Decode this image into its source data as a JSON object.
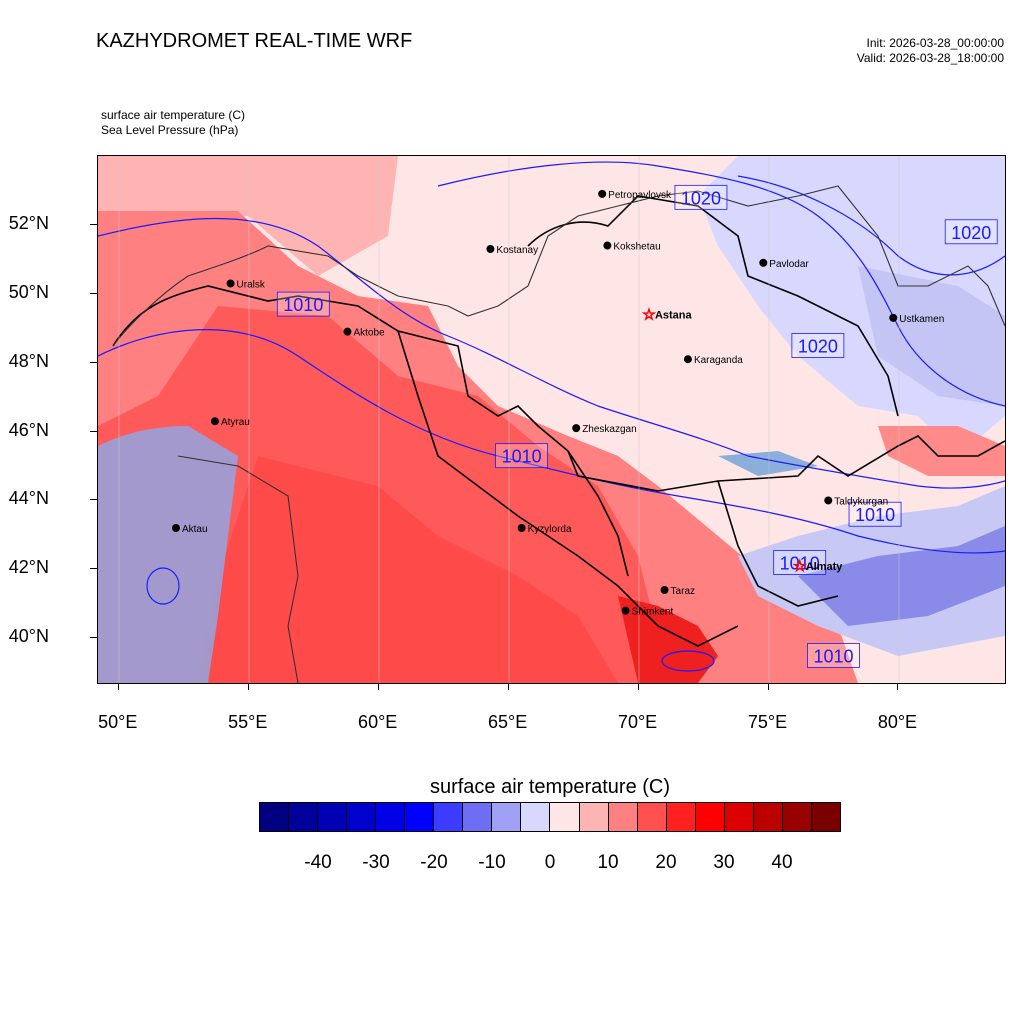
{
  "header": {
    "title": "KAZHYDROMET REAL-TIME WRF",
    "init": "Init: 2026-03-28_00:00:00",
    "valid": "Valid: 2026-03-28_18:00:00"
  },
  "variables": {
    "primary": "surface air temperature   (C)",
    "secondary": "Sea Level Pressure   (hPa)"
  },
  "map": {
    "lon_range": [
      49.2,
      84.1
    ],
    "lat_range": [
      38.7,
      54.0
    ],
    "lat_ticks": [
      "52°N",
      "50°N",
      "48°N",
      "46°N",
      "44°N",
      "42°N",
      "40°N"
    ],
    "lat_values": [
      52,
      50,
      48,
      46,
      44,
      42,
      40
    ],
    "lon_ticks": [
      "50°E",
      "55°E",
      "60°E",
      "65°E",
      "70°E",
      "75°E",
      "80°E"
    ],
    "lon_values": [
      50,
      55,
      60,
      65,
      70,
      75,
      80
    ],
    "cities": [
      {
        "name": "Petropavlovsk",
        "lon": 68.6,
        "lat": 52.9
      },
      {
        "name": "Kostanay",
        "lon": 64.3,
        "lat": 51.3
      },
      {
        "name": "Kokshetau",
        "lon": 68.8,
        "lat": 51.4
      },
      {
        "name": "Uralsk",
        "lon": 54.3,
        "lat": 50.3
      },
      {
        "name": "Pavlodar",
        "lon": 74.8,
        "lat": 50.9
      },
      {
        "name": "Aktobe",
        "lon": 58.8,
        "lat": 48.9
      },
      {
        "name": "Astana",
        "lon": 70.4,
        "lat": 49.4,
        "capital": true
      },
      {
        "name": "Ustkamen",
        "lon": 79.8,
        "lat": 49.3
      },
      {
        "name": "Karaganda",
        "lon": 71.9,
        "lat": 48.1
      },
      {
        "name": "Atyrau",
        "lon": 53.7,
        "lat": 46.3
      },
      {
        "name": "Zheskazgan",
        "lon": 67.6,
        "lat": 46.1
      },
      {
        "name": "Taldykurgan",
        "lon": 77.3,
        "lat": 44.0
      },
      {
        "name": "Aktau",
        "lon": 52.2,
        "lat": 43.2
      },
      {
        "name": "Kyzylorda",
        "lon": 65.5,
        "lat": 43.2
      },
      {
        "name": "Almaty",
        "lon": 76.2,
        "lat": 42.1,
        "capital": true
      },
      {
        "name": "Taraz",
        "lon": 71.0,
        "lat": 41.4
      },
      {
        "name": "Shimkent",
        "lon": 69.5,
        "lat": 40.8
      }
    ],
    "pressure_labels": [
      {
        "text": "1020",
        "lon": 72.4,
        "lat": 52.8
      },
      {
        "text": "1020",
        "lon": 82.8,
        "lat": 51.8
      },
      {
        "text": "1010",
        "lon": 57.1,
        "lat": 49.7
      },
      {
        "text": "1020",
        "lon": 76.9,
        "lat": 48.5
      },
      {
        "text": "1010",
        "lon": 65.5,
        "lat": 45.3
      },
      {
        "text": "1010",
        "lon": 79.1,
        "lat": 43.6
      },
      {
        "text": "1010",
        "lon": 76.2,
        "lat": 42.2
      },
      {
        "text": "1010",
        "lon": 77.5,
        "lat": 39.5
      }
    ]
  },
  "colorbar": {
    "title": "surface air temperature  (C)",
    "colors": [
      "#000080",
      "#00009c",
      "#0000b4",
      "#0000cc",
      "#0000e6",
      "#0000ff",
      "#3c3cff",
      "#6e6ef2",
      "#a0a0f5",
      "#d8d8ff",
      "#ffe6e6",
      "#ffb4b4",
      "#ff8080",
      "#ff5050",
      "#ff2020",
      "#ff0000",
      "#dd0000",
      "#bb0000",
      "#990000",
      "#7a0000"
    ],
    "ticks": [
      "-40",
      "-30",
      "-20",
      "-10",
      "0",
      "10",
      "20",
      "30",
      "40"
    ],
    "tick_values": [
      -40,
      -30,
      -20,
      -10,
      0,
      10,
      20,
      30,
      40
    ],
    "range": [
      -50,
      50
    ]
  }
}
